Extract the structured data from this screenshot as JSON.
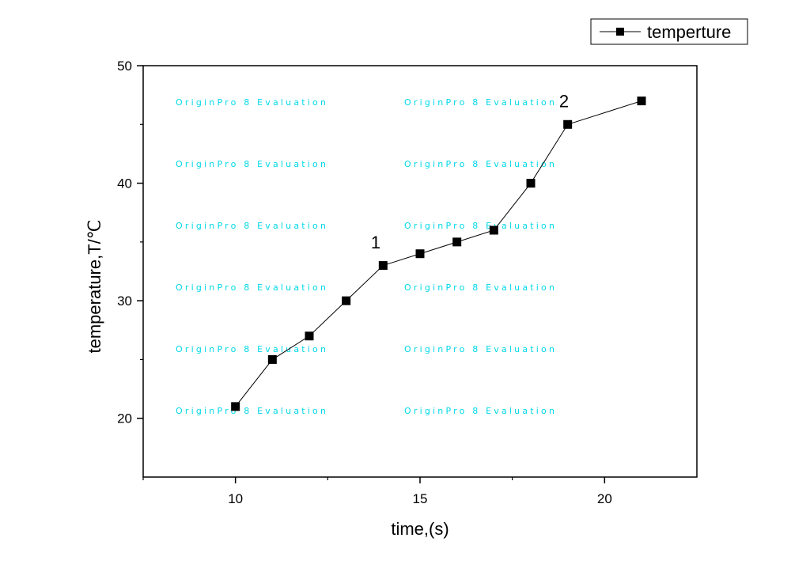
{
  "chart_data": {
    "type": "line",
    "title": "",
    "xlabel": "time,(s)",
    "ylabel": "temperature,T/℃",
    "xlim": [
      7.5,
      22.5
    ],
    "ylim": [
      15,
      50
    ],
    "x_ticks": [
      10,
      15,
      20
    ],
    "x_tick_labels": [
      "10",
      "15",
      "20"
    ],
    "x_minor_ticks": [
      7.5,
      12.5,
      17.5
    ],
    "y_ticks": [
      20,
      30,
      40,
      50
    ],
    "y_tick_labels": [
      "20",
      "30",
      "40",
      "50"
    ],
    "y_minor_ticks": [
      25,
      35,
      45
    ],
    "grid": false,
    "legend_position": "top-right",
    "series": [
      {
        "name": "temperture",
        "color": "#000000",
        "marker": "square",
        "x": [
          10,
          11,
          12,
          13,
          14,
          15,
          16,
          17,
          18,
          19,
          21
        ],
        "y": [
          21,
          25,
          27,
          30,
          33,
          34,
          35,
          36,
          40,
          45,
          47
        ]
      }
    ],
    "annotations": [
      {
        "text": "1",
        "x": 13.8,
        "y": 35
      },
      {
        "text": "2",
        "x": 18.9,
        "y": 47
      }
    ],
    "watermark": "OriginPro 8 Evaluation"
  }
}
